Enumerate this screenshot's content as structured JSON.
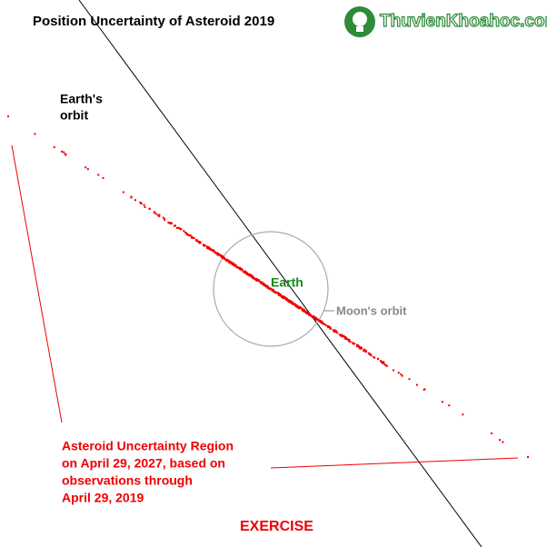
{
  "header": {
    "title": "Position Uncertainty of Asteroid 2019",
    "watermark": "ThuvienKhoahoc.com"
  },
  "labels": {
    "earths_orbit": [
      "Earth's",
      "orbit"
    ],
    "earth": "Earth",
    "moons_orbit": "Moon's orbit",
    "uncertainty_region": [
      "Asteroid Uncertainty Region",
      "on April 29, 2027, based on",
      "observations through",
      "April 29, 2019"
    ],
    "exercise": "EXERCISE"
  }
}
